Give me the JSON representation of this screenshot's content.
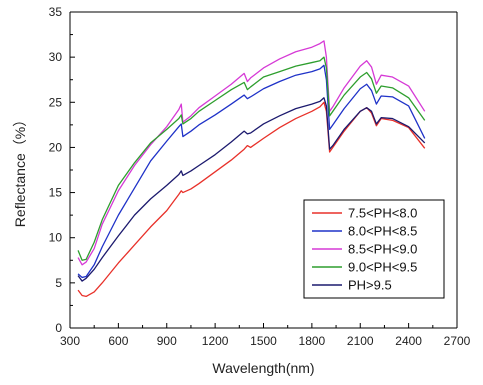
{
  "chart_data": {
    "type": "line",
    "xlabel": "Wavelength(nm)",
    "ylabel": "Reflectance（%）",
    "xlim": [
      300,
      2700
    ],
    "ylim": [
      0,
      35
    ],
    "x_ticks": [
      "300",
      "600",
      "900",
      "1200",
      "1500",
      "1800",
      "2100",
      "2400",
      "2700"
    ],
    "y_ticks": [
      "0",
      "5",
      "10",
      "15",
      "20",
      "25",
      "30",
      "35"
    ],
    "grid": false,
    "legend_position": "bottom-right",
    "series": [
      {
        "name": "7.5<PH<8.0",
        "color": "#e8312a",
        "points": [
          [
            350,
            4.2
          ],
          [
            375,
            3.6
          ],
          [
            400,
            3.5
          ],
          [
            450,
            4.0
          ],
          [
            500,
            5.0
          ],
          [
            600,
            7.2
          ],
          [
            700,
            9.2
          ],
          [
            800,
            11.2
          ],
          [
            900,
            13.0
          ],
          [
            950,
            14.2
          ],
          [
            975,
            14.8
          ],
          [
            990,
            15.2
          ],
          [
            1000,
            15.0
          ],
          [
            1050,
            15.4
          ],
          [
            1100,
            16.0
          ],
          [
            1200,
            17.3
          ],
          [
            1300,
            18.6
          ],
          [
            1380,
            19.8
          ],
          [
            1400,
            20.2
          ],
          [
            1420,
            20.0
          ],
          [
            1500,
            21.0
          ],
          [
            1600,
            22.2
          ],
          [
            1700,
            23.2
          ],
          [
            1800,
            24.0
          ],
          [
            1850,
            24.5
          ],
          [
            1875,
            25.0
          ],
          [
            1890,
            24.0
          ],
          [
            1910,
            19.5
          ],
          [
            1930,
            20.0
          ],
          [
            2000,
            21.8
          ],
          [
            2100,
            24.0
          ],
          [
            2140,
            24.4
          ],
          [
            2170,
            23.8
          ],
          [
            2200,
            22.4
          ],
          [
            2230,
            23.2
          ],
          [
            2300,
            23.0
          ],
          [
            2400,
            22.2
          ],
          [
            2500,
            19.9
          ]
        ]
      },
      {
        "name": "8.0<PH<8.5",
        "color": "#1f32c8",
        "points": [
          [
            350,
            6.0
          ],
          [
            375,
            5.6
          ],
          [
            400,
            5.7
          ],
          [
            450,
            7.0
          ],
          [
            500,
            9.0
          ],
          [
            600,
            12.5
          ],
          [
            700,
            15.5
          ],
          [
            800,
            18.5
          ],
          [
            900,
            20.7
          ],
          [
            975,
            22.3
          ],
          [
            990,
            22.6
          ],
          [
            1000,
            21.2
          ],
          [
            1050,
            21.8
          ],
          [
            1100,
            22.5
          ],
          [
            1200,
            23.6
          ],
          [
            1300,
            24.8
          ],
          [
            1380,
            25.8
          ],
          [
            1400,
            25.4
          ],
          [
            1420,
            25.6
          ],
          [
            1500,
            26.5
          ],
          [
            1600,
            27.3
          ],
          [
            1700,
            28.0
          ],
          [
            1800,
            28.4
          ],
          [
            1850,
            28.7
          ],
          [
            1875,
            29.1
          ],
          [
            1890,
            27.5
          ],
          [
            1910,
            22.0
          ],
          [
            1930,
            22.5
          ],
          [
            2000,
            24.3
          ],
          [
            2100,
            26.5
          ],
          [
            2140,
            27.0
          ],
          [
            2170,
            26.3
          ],
          [
            2200,
            24.8
          ],
          [
            2230,
            25.7
          ],
          [
            2300,
            25.6
          ],
          [
            2400,
            24.6
          ],
          [
            2500,
            21.0
          ]
        ]
      },
      {
        "name": "8.5<PH<9.0",
        "color": "#d63ad6",
        "points": [
          [
            350,
            7.8
          ],
          [
            375,
            7.0
          ],
          [
            400,
            7.3
          ],
          [
            450,
            8.8
          ],
          [
            500,
            11.5
          ],
          [
            600,
            15.2
          ],
          [
            700,
            18.0
          ],
          [
            800,
            20.3
          ],
          [
            900,
            22.3
          ],
          [
            975,
            24.2
          ],
          [
            990,
            24.8
          ],
          [
            1000,
            22.8
          ],
          [
            1050,
            23.5
          ],
          [
            1100,
            24.4
          ],
          [
            1200,
            25.7
          ],
          [
            1300,
            27.0
          ],
          [
            1380,
            28.2
          ],
          [
            1400,
            27.3
          ],
          [
            1420,
            27.7
          ],
          [
            1500,
            28.8
          ],
          [
            1600,
            29.8
          ],
          [
            1700,
            30.6
          ],
          [
            1800,
            31.1
          ],
          [
            1850,
            31.5
          ],
          [
            1875,
            31.8
          ],
          [
            1890,
            30.0
          ],
          [
            1910,
            24.0
          ],
          [
            1930,
            24.5
          ],
          [
            2000,
            26.6
          ],
          [
            2100,
            29.0
          ],
          [
            2140,
            29.6
          ],
          [
            2170,
            28.9
          ],
          [
            2200,
            27.0
          ],
          [
            2230,
            28.0
          ],
          [
            2300,
            27.8
          ],
          [
            2400,
            26.8
          ],
          [
            2500,
            24.0
          ]
        ]
      },
      {
        "name": "9.0<PH<9.5",
        "color": "#2e9e2e",
        "points": [
          [
            350,
            8.6
          ],
          [
            375,
            7.5
          ],
          [
            400,
            7.6
          ],
          [
            450,
            9.5
          ],
          [
            500,
            12.0
          ],
          [
            600,
            15.8
          ],
          [
            700,
            18.3
          ],
          [
            800,
            20.5
          ],
          [
            900,
            22.0
          ],
          [
            975,
            23.2
          ],
          [
            990,
            23.6
          ],
          [
            1000,
            22.6
          ],
          [
            1050,
            23.2
          ],
          [
            1100,
            24.0
          ],
          [
            1200,
            25.2
          ],
          [
            1300,
            26.4
          ],
          [
            1380,
            27.2
          ],
          [
            1400,
            26.4
          ],
          [
            1420,
            26.7
          ],
          [
            1500,
            27.8
          ],
          [
            1600,
            28.4
          ],
          [
            1700,
            29.0
          ],
          [
            1800,
            29.4
          ],
          [
            1850,
            29.6
          ],
          [
            1875,
            30.0
          ],
          [
            1890,
            28.8
          ],
          [
            1910,
            23.5
          ],
          [
            1930,
            24.0
          ],
          [
            2000,
            25.8
          ],
          [
            2100,
            27.8
          ],
          [
            2140,
            28.3
          ],
          [
            2170,
            27.6
          ],
          [
            2200,
            26.0
          ],
          [
            2230,
            26.8
          ],
          [
            2300,
            26.6
          ],
          [
            2400,
            25.5
          ],
          [
            2500,
            23.0
          ]
        ]
      },
      {
        "name": "PH>9.5",
        "color": "#1c1a6e",
        "points": [
          [
            350,
            5.8
          ],
          [
            375,
            5.2
          ],
          [
            400,
            5.5
          ],
          [
            450,
            6.5
          ],
          [
            500,
            7.8
          ],
          [
            600,
            10.2
          ],
          [
            700,
            12.5
          ],
          [
            800,
            14.3
          ],
          [
            900,
            15.8
          ],
          [
            975,
            17.0
          ],
          [
            990,
            17.4
          ],
          [
            1000,
            16.9
          ],
          [
            1050,
            17.4
          ],
          [
            1100,
            18.0
          ],
          [
            1200,
            19.2
          ],
          [
            1300,
            20.6
          ],
          [
            1380,
            21.8
          ],
          [
            1400,
            21.5
          ],
          [
            1420,
            21.6
          ],
          [
            1500,
            22.6
          ],
          [
            1600,
            23.5
          ],
          [
            1700,
            24.3
          ],
          [
            1800,
            24.8
          ],
          [
            1850,
            25.1
          ],
          [
            1875,
            25.5
          ],
          [
            1890,
            24.6
          ],
          [
            1910,
            19.8
          ],
          [
            1930,
            20.2
          ],
          [
            2000,
            22.0
          ],
          [
            2100,
            24.0
          ],
          [
            2140,
            24.4
          ],
          [
            2170,
            24.0
          ],
          [
            2200,
            22.6
          ],
          [
            2230,
            23.3
          ],
          [
            2300,
            23.2
          ],
          [
            2400,
            22.3
          ],
          [
            2500,
            20.5
          ]
        ]
      }
    ]
  }
}
